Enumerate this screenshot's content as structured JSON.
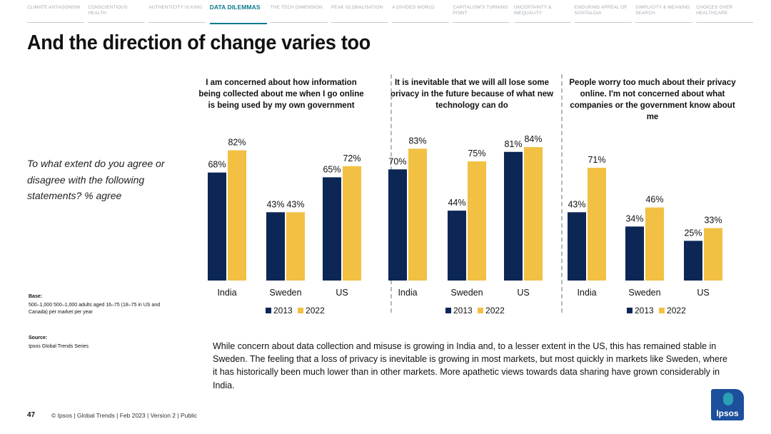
{
  "nav": [
    {
      "label": "CLIMATE ANTAGONISM",
      "active": false
    },
    {
      "label": "CONSCIENTIOUS HEALTH",
      "active": false
    },
    {
      "label": "AUTHENTICITY IS KING",
      "active": false
    },
    {
      "label": "DATA DILEMMAS",
      "active": true
    },
    {
      "label": "THE TECH DIMENSION",
      "active": false
    },
    {
      "label": "PEAK GLOBALISATION",
      "active": false
    },
    {
      "label": "A DIVIDED WORLD",
      "active": false
    },
    {
      "label": "CAPITALISM'S TURNING POINT",
      "active": false
    },
    {
      "label": "UNCERTAINTY & INEQUALITY",
      "active": false
    },
    {
      "label": "ENDURING APPEAL OF NOSTALGIA",
      "active": false
    },
    {
      "label": "SIMPLICITY & MEANING SEARCH",
      "active": false
    },
    {
      "label": "CHOICES OVER HEALTHCARE",
      "active": false
    }
  ],
  "title": "And the direction of change varies too",
  "question": "To what extent do you agree or disagree with the following statements? % agree",
  "base": {
    "label": "Base:",
    "text": "500–1,000 500–1,000 adults aged 16–75 (18–75 in US and Canada) per market per year"
  },
  "source": {
    "label": "Source:",
    "text": "Ipsos Global Trends Series"
  },
  "colors": {
    "series_2013": "#0c2756",
    "series_2022": "#f2c043"
  },
  "chart_data": [
    {
      "type": "bar",
      "title": "I am concerned about how information being collected about me when I go online is being used by my own government",
      "categories": [
        "India",
        "Sweden",
        "US"
      ],
      "series": [
        {
          "name": "2013",
          "values": [
            68,
            43,
            65
          ]
        },
        {
          "name": "2022",
          "values": [
            82,
            43,
            72
          ]
        }
      ],
      "ylim": [
        0,
        100
      ],
      "grid": false,
      "legend": "bottom"
    },
    {
      "type": "bar",
      "title": "It is inevitable that we will all lose some privacy in the future because of what new technology can do",
      "categories": [
        "India",
        "Sweden",
        "US"
      ],
      "series": [
        {
          "name": "2013",
          "values": [
            70,
            44,
            81
          ]
        },
        {
          "name": "2022",
          "values": [
            83,
            75,
            84
          ]
        }
      ],
      "ylim": [
        0,
        100
      ],
      "grid": false,
      "legend": "bottom"
    },
    {
      "type": "bar",
      "title": "People worry too much about their privacy online. I'm not concerned about what companies or the government know about me",
      "categories": [
        "India",
        "Sweden",
        "US"
      ],
      "series": [
        {
          "name": "2013",
          "values": [
            43,
            34,
            25
          ]
        },
        {
          "name": "2022",
          "values": [
            71,
            46,
            33
          ]
        }
      ],
      "ylim": [
        0,
        100
      ],
      "grid": false,
      "legend": "bottom"
    }
  ],
  "commentary": "While concern about data collection and misuse is growing in India and, to a lesser extent in the US, this has remained stable in Sweden. The feeling that a loss of privacy is inevitable is growing in most markets, but most quickly in markets like Sweden, where it has historically been much lower than in other markets. More apathetic views towards data sharing have grown considerably in India.",
  "footer": {
    "page": "47",
    "text": "© Ipsos | Global Trends | Feb 2023 | Version 2 | Public"
  },
  "logo": {
    "text": "Ipsos"
  }
}
